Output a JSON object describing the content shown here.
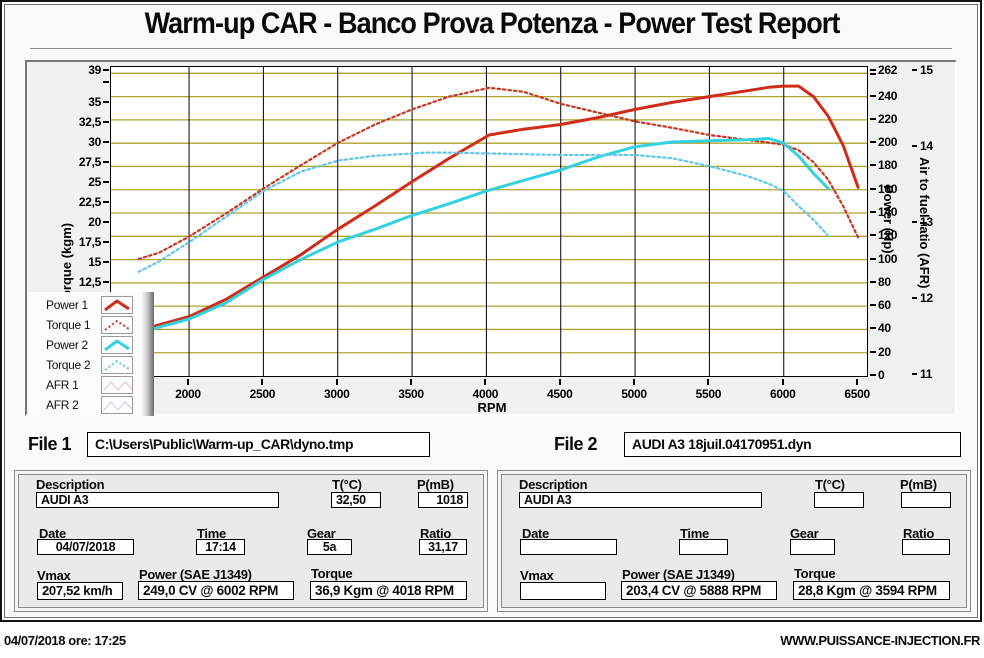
{
  "title": "Warm-up CAR  - Banco Prova Potenza -  Power Test Report",
  "chart_data": {
    "type": "line",
    "title": "",
    "grid": {
      "horizontal_color": "#b1a22b",
      "vertical_color": "#000000",
      "background": "#ffffff"
    },
    "axes": {
      "x": {
        "label": "RPM",
        "min": 1475,
        "max": 6560,
        "ticks": [
          2000,
          2500,
          3000,
          3500,
          4000,
          4500,
          5000,
          5500,
          6000,
          6500
        ]
      },
      "torque": {
        "label": "Torque (kgm)",
        "top": 39,
        "tick_values": [
          39,
          37.5,
          35,
          32.5,
          30,
          27.5,
          25,
          22.5,
          20,
          17.5,
          15,
          12.5
        ],
        "tick_labels": [
          "39",
          "",
          "35",
          "32,5",
          "30",
          "27,5",
          "25",
          "22,5",
          "20",
          "17,5",
          "15",
          "12,5"
        ]
      },
      "power": {
        "label": "Power (Hp)",
        "min": 0,
        "max": 262,
        "tick_values": [
          262,
          240,
          220,
          200,
          180,
          160,
          140,
          120,
          100,
          80,
          60,
          40,
          20,
          0
        ]
      },
      "afr": {
        "label": "Air to fuel ratio (AFR)",
        "min": 11,
        "max": 15,
        "tick_values": [
          15,
          14,
          13,
          12,
          11
        ]
      }
    },
    "series": [
      {
        "name": "Power 1",
        "axis": "power",
        "color": "#d02c18",
        "style": "solid",
        "points": [
          [
            1660,
            39
          ],
          [
            1800,
            44
          ],
          [
            2000,
            51
          ],
          [
            2250,
            66
          ],
          [
            2500,
            85
          ],
          [
            2750,
            104
          ],
          [
            3000,
            126
          ],
          [
            3250,
            146
          ],
          [
            3500,
            167
          ],
          [
            3750,
            187
          ],
          [
            4018,
            207
          ],
          [
            4250,
            212
          ],
          [
            4500,
            216
          ],
          [
            4750,
            222
          ],
          [
            5000,
            229
          ],
          [
            5250,
            235
          ],
          [
            5500,
            240
          ],
          [
            5750,
            245
          ],
          [
            5900,
            248
          ],
          [
            6000,
            249
          ],
          [
            6100,
            249
          ],
          [
            6200,
            240
          ],
          [
            6300,
            223
          ],
          [
            6400,
            198
          ],
          [
            6500,
            162
          ]
        ]
      },
      {
        "name": "Torque 1",
        "axis": "torque",
        "color": "#c23a22",
        "style": "dashed",
        "points": [
          [
            1660,
            15.5
          ],
          [
            1800,
            16.3
          ],
          [
            2000,
            18.3
          ],
          [
            2250,
            21.2
          ],
          [
            2500,
            24.3
          ],
          [
            2750,
            27.2
          ],
          [
            3000,
            30.0
          ],
          [
            3250,
            32.3
          ],
          [
            3500,
            34.2
          ],
          [
            3750,
            35.8
          ],
          [
            4018,
            36.9
          ],
          [
            4250,
            36.4
          ],
          [
            4500,
            34.9
          ],
          [
            4750,
            33.8
          ],
          [
            5000,
            32.7
          ],
          [
            5250,
            31.9
          ],
          [
            5500,
            31.0
          ],
          [
            5750,
            30.4
          ],
          [
            6000,
            29.8
          ],
          [
            6100,
            29.1
          ],
          [
            6200,
            27.6
          ],
          [
            6300,
            25.4
          ],
          [
            6400,
            22.1
          ],
          [
            6500,
            18.2
          ]
        ]
      },
      {
        "name": "Power 2",
        "axis": "power",
        "color": "#33d2e2",
        "style": "solid",
        "points": [
          [
            1660,
            37
          ],
          [
            1800,
            42
          ],
          [
            2000,
            49
          ],
          [
            2250,
            63
          ],
          [
            2500,
            83
          ],
          [
            2750,
            100
          ],
          [
            3000,
            115
          ],
          [
            3250,
            126
          ],
          [
            3500,
            138
          ],
          [
            3750,
            148
          ],
          [
            4000,
            159
          ],
          [
            4250,
            168
          ],
          [
            4500,
            177
          ],
          [
            4750,
            188
          ],
          [
            5000,
            197
          ],
          [
            5250,
            201
          ],
          [
            5500,
            202
          ],
          [
            5750,
            203
          ],
          [
            5900,
            204
          ],
          [
            6000,
            200
          ],
          [
            6100,
            189
          ],
          [
            6200,
            174
          ],
          [
            6300,
            161
          ]
        ]
      },
      {
        "name": "Torque 2",
        "axis": "torque",
        "color": "#63c6ea",
        "style": "dashed",
        "points": [
          [
            1660,
            13.9
          ],
          [
            1800,
            15.2
          ],
          [
            2000,
            17.6
          ],
          [
            2250,
            20.8
          ],
          [
            2500,
            24.0
          ],
          [
            2750,
            26.4
          ],
          [
            3000,
            27.8
          ],
          [
            3250,
            28.4
          ],
          [
            3594,
            28.8
          ],
          [
            3750,
            28.8
          ],
          [
            4000,
            28.7
          ],
          [
            4250,
            28.6
          ],
          [
            4500,
            28.5
          ],
          [
            4750,
            28.5
          ],
          [
            5000,
            28.5
          ],
          [
            5250,
            28.1
          ],
          [
            5500,
            27.1
          ],
          [
            5750,
            25.9
          ],
          [
            5900,
            24.9
          ],
          [
            6000,
            24.0
          ],
          [
            6100,
            22.1
          ],
          [
            6200,
            20.4
          ],
          [
            6300,
            18.4
          ]
        ]
      }
    ],
    "legend_position": "bottom-left",
    "legend": [
      {
        "label": "Power 1",
        "color": "#d02c18",
        "style": "solid"
      },
      {
        "label": "Torque 1",
        "color": "#c23a22",
        "style": "dashed"
      },
      {
        "label": "Power 2",
        "color": "#33d2e2",
        "style": "solid"
      },
      {
        "label": "Torque 2",
        "color": "#63c6ea",
        "style": "dashed"
      },
      {
        "label": "AFR 1",
        "color": "#e8c2be",
        "style": "zigzag"
      },
      {
        "label": "AFR 2",
        "color": "#ccd5db",
        "style": "zigzag"
      }
    ]
  },
  "files": {
    "file1_label": "File 1",
    "file1_value": "C:\\Users\\Public\\Warm-up_CAR\\dyno.tmp",
    "file2_label": "File 2",
    "file2_value": "AUDI A3 18juil.04170951.dyn"
  },
  "panel1": {
    "description_label": "Description",
    "description": "AUDI A3",
    "t_label": "T(°C)",
    "t": "32,50",
    "p_label": "P(mB)",
    "p": "1018",
    "date_label": "Date",
    "date": "04/07/2018",
    "time_label": "Time",
    "time": "17:14",
    "gear_label": "Gear",
    "gear": "5a",
    "ratio_label": "Ratio",
    "ratio": "31,17",
    "vmax_label": "Vmax",
    "vmax": "207,52 km/h",
    "power_label": "Power (SAE J1349)",
    "power": "249,0 CV  @ 6002  RPM",
    "torque_label": "Torque",
    "torque": "36,9 Kgm  @ 4018  RPM"
  },
  "panel2": {
    "description_label": "Description",
    "description": "AUDI A3",
    "t_label": "T(°C)",
    "t": "",
    "p_label": "P(mB)",
    "p": "",
    "date_label": "Date",
    "date": "",
    "time_label": "Time",
    "time": "",
    "gear_label": "Gear",
    "gear": "",
    "ratio_label": "Ratio",
    "ratio": "",
    "vmax_label": "Vmax",
    "vmax": "",
    "power_label": "Power (SAE J1349)",
    "power": "203,4 CV  @ 5888  RPM",
    "torque_label": "Torque",
    "torque": "28,8 Kgm  @ 3594  RPM"
  },
  "footer": {
    "left": "04/07/2018  ore: 17:25",
    "right": "WWW.PUISSANCE-INJECTION.FR"
  }
}
